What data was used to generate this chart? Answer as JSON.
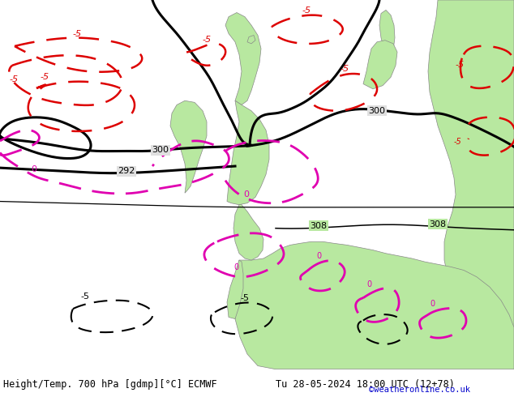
{
  "title_left": "Height/Temp. 700 hPa [gdmp][°C] ECMWF",
  "title_right": "Tu 28-05-2024 18:00 UTC (12+78)",
  "credit": "©weatheronline.co.uk",
  "ocean_color": "#e0e0e0",
  "land_color": "#b8e8a0",
  "coast_color": "#888888",
  "black_color": "#000000",
  "red_color": "#dd0000",
  "magenta_color": "#e000b0",
  "thin_black": "#111111",
  "label_fs": 8,
  "title_fs": 8.5,
  "credit_color": "#0000cc",
  "lw_thick": 2.2,
  "lw_thin": 1.1,
  "lw_red": 1.8,
  "lw_mag": 2.0
}
